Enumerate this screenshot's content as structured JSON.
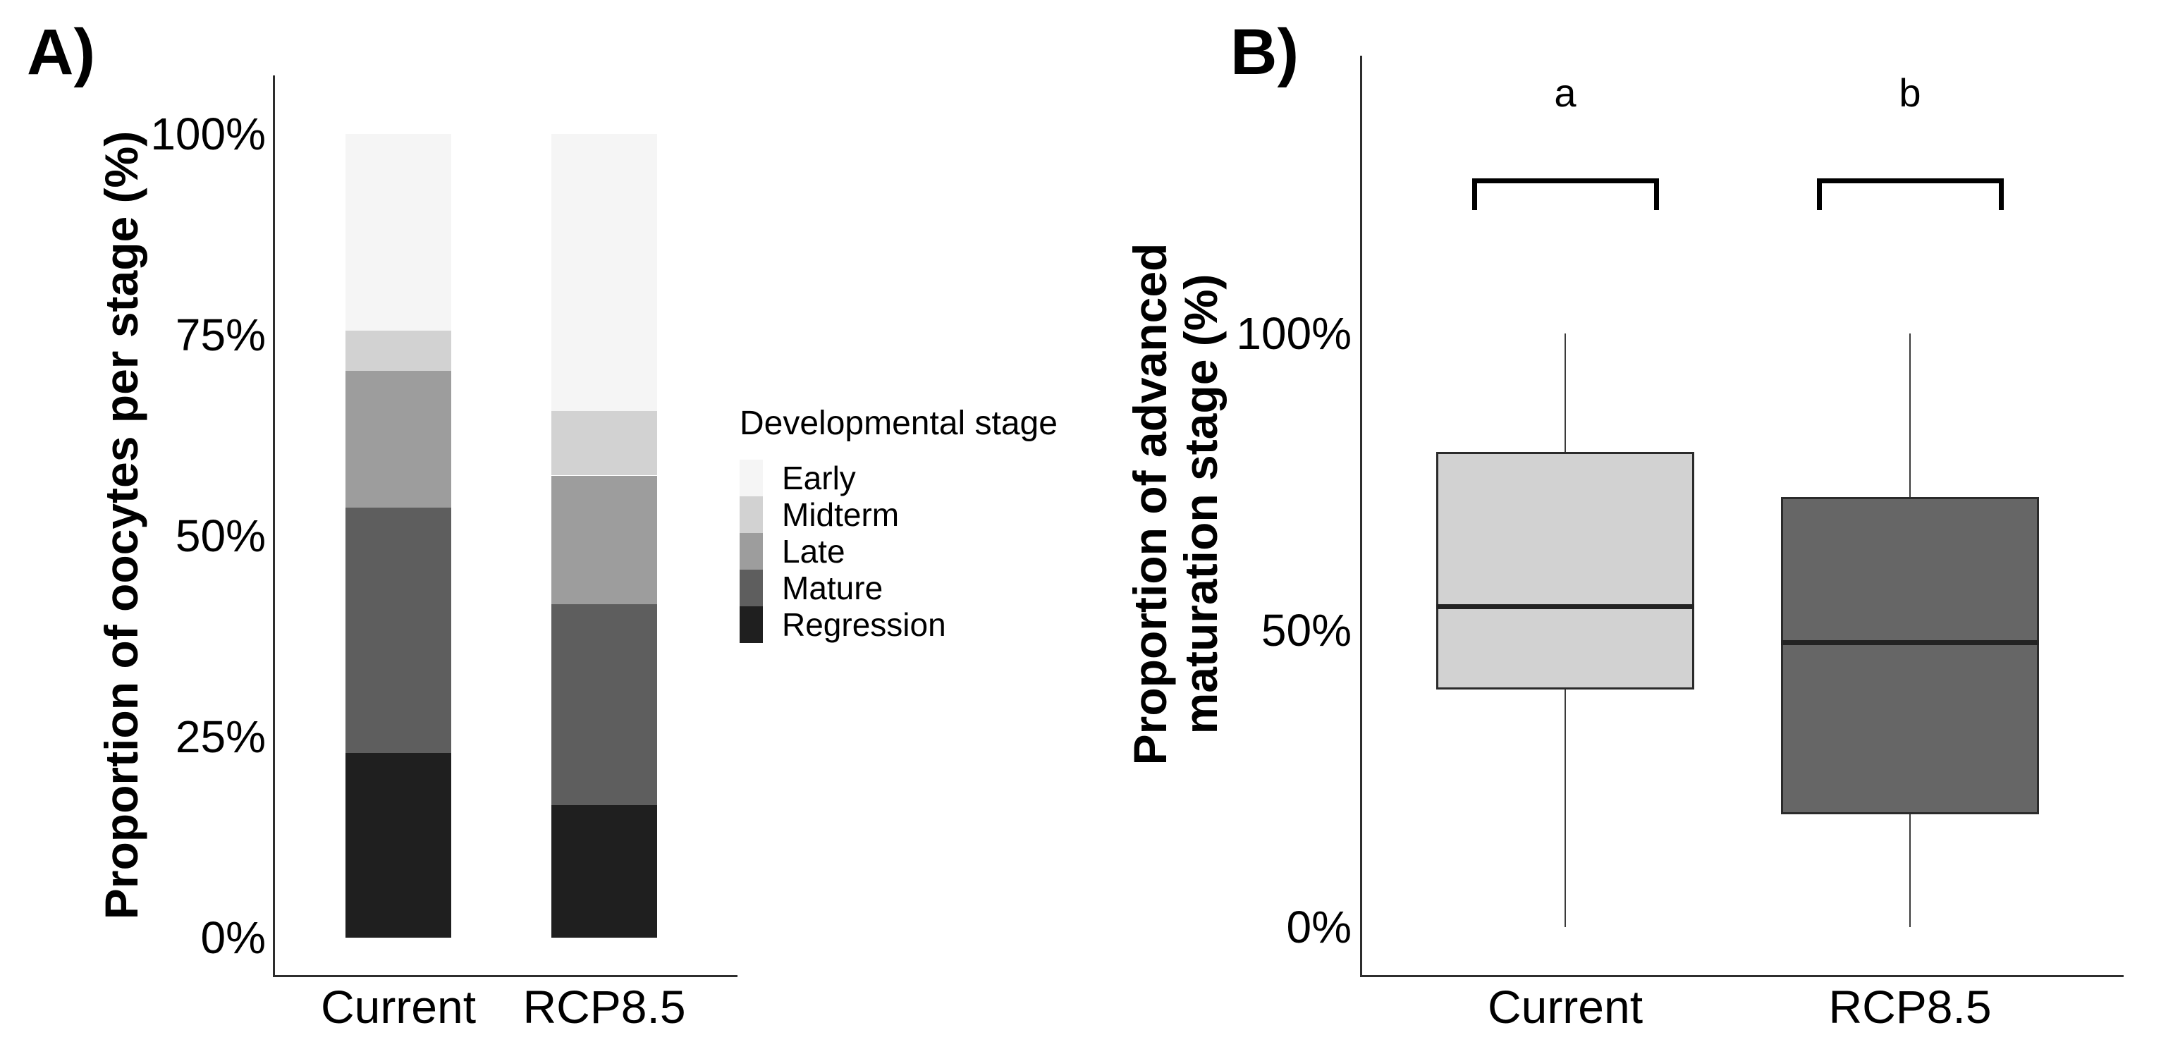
{
  "figure": {
    "background": "#ffffff"
  },
  "panel_a": {
    "label": "A)",
    "y_axis_title": "Proportion of oocytes per stage (%)",
    "y_tick_labels": [
      "0%",
      "25%",
      "50%",
      "75%",
      "100%"
    ],
    "x_tick_labels": [
      "Current",
      "RCP8.5"
    ]
  },
  "legend": {
    "title": "Developmental stage",
    "items": [
      {
        "label": "Early",
        "color": "#f5f5f5"
      },
      {
        "label": "Midterm",
        "color": "#d2d2d2"
      },
      {
        "label": "Late",
        "color": "#9d9d9d"
      },
      {
        "label": "Mature",
        "color": "#5e5e5e"
      },
      {
        "label": "Regression",
        "color": "#1f1f1f"
      }
    ]
  },
  "panel_b": {
    "label": "B)",
    "y_axis_title_lines": [
      "Proportion of advanced",
      "maturation stage (%)"
    ],
    "y_tick_labels": [
      "0%",
      "50%",
      "100%"
    ],
    "x_tick_labels": [
      "Current",
      "RCP8.5"
    ]
  },
  "chart_data": [
    {
      "type": "bar",
      "subtype": "stacked_percent",
      "panel": "A",
      "title": "",
      "xlabel": "",
      "ylabel": "Proportion of oocytes per stage (%)",
      "ylim": [
        0,
        100
      ],
      "y_ticks": [
        0,
        25,
        50,
        75,
        100
      ],
      "categories": [
        "Current",
        "RCP8.5"
      ],
      "series": [
        {
          "name": "Early",
          "color": "#f5f5f5",
          "values": [
            24.5,
            34.5
          ]
        },
        {
          "name": "Midterm",
          "color": "#d2d2d2",
          "values": [
            5,
            8
          ]
        },
        {
          "name": "Late",
          "color": "#9d9d9d",
          "values": [
            17,
            16
          ]
        },
        {
          "name": "Mature",
          "color": "#5e5e5e",
          "values": [
            30.5,
            25
          ]
        },
        {
          "name": "Regression",
          "color": "#1f1f1f",
          "values": [
            23,
            16.5
          ]
        }
      ],
      "legend_title": "Developmental stage",
      "legend_position": "right",
      "grid": false
    },
    {
      "type": "boxplot",
      "panel": "B",
      "title": "",
      "xlabel": "",
      "ylabel": "Proportion of advanced maturation stage (%)",
      "ylim": [
        0,
        100
      ],
      "y_ticks": [
        0,
        50,
        100
      ],
      "categories": [
        "Current",
        "RCP8.5"
      ],
      "boxes": [
        {
          "category": "Current",
          "fill": "#d2d2d2",
          "whisker_low": 0,
          "q1": 40,
          "median": 54,
          "q3": 80,
          "whisker_high": 100,
          "significance_letter": "a"
        },
        {
          "category": "RCP8.5",
          "fill": "#666666",
          "whisker_low": 0,
          "q1": 19,
          "median": 48,
          "q3": 72.5,
          "whisker_high": 100,
          "significance_letter": "b"
        }
      ],
      "grid": false
    }
  ]
}
